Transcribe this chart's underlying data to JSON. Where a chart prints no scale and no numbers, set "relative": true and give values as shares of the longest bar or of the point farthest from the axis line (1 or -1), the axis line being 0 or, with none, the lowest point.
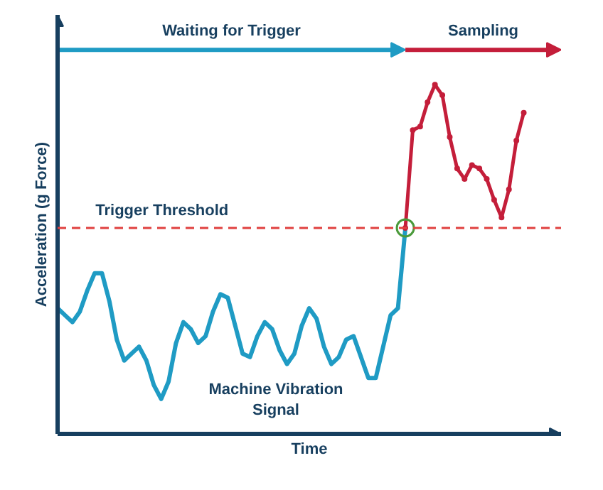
{
  "chart_data": {
    "type": "line",
    "relative": true,
    "xlabel": "Time",
    "ylabel": "Acceleration (g Force)",
    "categories": [
      null,
      null,
      null,
      null,
      null,
      null,
      null,
      null,
      null,
      null,
      null,
      null,
      null,
      null,
      null,
      null,
      null,
      null,
      null,
      null,
      null,
      null,
      null,
      null,
      null,
      null,
      null,
      null,
      null,
      null,
      null,
      null,
      null,
      null,
      null,
      null,
      null,
      null,
      null,
      null,
      null,
      null,
      null,
      null,
      null,
      null,
      null,
      null,
      null,
      null,
      null,
      null,
      null,
      null,
      null,
      null,
      null,
      null,
      null,
      null,
      null,
      null,
      null,
      null
    ],
    "line_style": "solid",
    "series": [
      {
        "name": "Machine Vibration Signal",
        "color": "#1f9bc4",
        "values": [
          0.36,
          0.34,
          0.32,
          0.35,
          0.41,
          0.46,
          0.46,
          0.38,
          0.27,
          0.21,
          0.23,
          0.25,
          0.21,
          0.14,
          0.1,
          0.15,
          0.26,
          0.32,
          0.3,
          0.26,
          0.28,
          0.35,
          0.4,
          0.39,
          0.31,
          0.23,
          0.22,
          0.28,
          0.32,
          0.3,
          0.24,
          0.2,
          0.23,
          0.31,
          0.36,
          0.33,
          0.25,
          0.2,
          0.22,
          0.27,
          0.28,
          0.22,
          0.16,
          0.16,
          0.25,
          0.34,
          0.36,
          0.59,
          null,
          null,
          null,
          null,
          null,
          null,
          null,
          null,
          null,
          null,
          null,
          null,
          null,
          null,
          null,
          null
        ]
      },
      {
        "color": "#c41e3a",
        "marker": "circle",
        "values": [
          null,
          null,
          null,
          null,
          null,
          null,
          null,
          null,
          null,
          null,
          null,
          null,
          null,
          null,
          null,
          null,
          null,
          null,
          null,
          null,
          null,
          null,
          null,
          null,
          null,
          null,
          null,
          null,
          null,
          null,
          null,
          null,
          null,
          null,
          null,
          null,
          null,
          null,
          null,
          null,
          null,
          null,
          null,
          null,
          null,
          null,
          null,
          0.59,
          0.87,
          0.88,
          0.95,
          1.0,
          0.97,
          0.85,
          0.76,
          0.73,
          0.77,
          0.76,
          0.73,
          0.67,
          0.62,
          0.7,
          0.84,
          0.92
        ]
      }
    ],
    "ref_lines": [
      {
        "axis": "y",
        "value": 0.59,
        "label": "Trigger Threshold",
        "color": "#e0403f",
        "line_style": "dashed"
      }
    ],
    "annotations": [
      "Waiting for Trigger",
      "Sampling"
    ]
  }
}
